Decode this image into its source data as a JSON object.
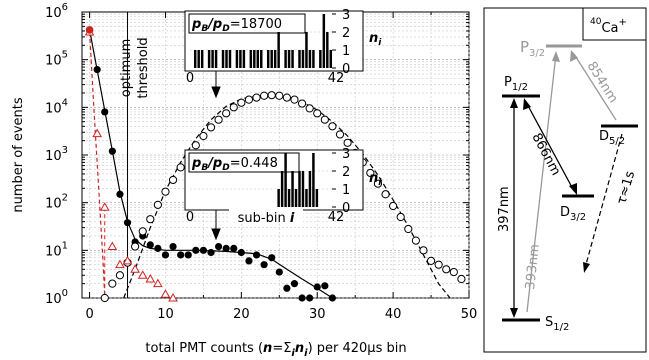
{
  "chart_data": [
    {
      "type": "scatter",
      "xlabel_parts": [
        "total PMT counts (",
        "n",
        "=Σ",
        "i",
        "n",
        "i",
        ") per 420μs bin"
      ],
      "ylabel": "number of events",
      "xlim": [
        -1,
        50
      ],
      "ylim_log10": [
        0,
        6
      ],
      "x_ticks": [
        "0",
        "10",
        "20",
        "30",
        "40",
        "50"
      ],
      "y_ticks": [
        {
          "base": "10",
          "exp": "0"
        },
        {
          "base": "10",
          "exp": "1"
        },
        {
          "base": "10",
          "exp": "2"
        },
        {
          "base": "10",
          "exp": "3"
        },
        {
          "base": "10",
          "exp": "4"
        },
        {
          "base": "10",
          "exp": "5"
        },
        {
          "base": "10",
          "exp": "6"
        }
      ],
      "y_scale": "log",
      "grid": true,
      "threshold_label": [
        "optimum",
        "threshold"
      ],
      "threshold_x": 5,
      "series": [
        {
          "marker": "filled-circle",
          "color": "#000000",
          "points": [
            [
              0,
              420000
            ],
            [
              1,
              62000
            ],
            [
              2,
              8000
            ],
            [
              3,
              1200
            ],
            [
              4,
              150
            ],
            [
              5,
              38
            ],
            [
              6,
              15
            ],
            [
              7,
              20
            ],
            [
              8,
              13
            ],
            [
              9,
              11
            ],
            [
              10,
              8
            ],
            [
              11,
              12
            ],
            [
              12,
              8
            ],
            [
              13,
              8
            ],
            [
              14,
              10
            ],
            [
              15,
              10
            ],
            [
              16,
              9
            ],
            [
              17,
              12
            ],
            [
              18,
              11
            ],
            [
              19,
              11
            ],
            [
              20,
              9
            ],
            [
              21,
              6
            ],
            [
              22,
              8
            ],
            [
              23,
              5
            ],
            [
              24,
              7
            ],
            [
              25,
              3.5
            ],
            [
              26,
              1.6
            ],
            [
              27,
              2
            ],
            [
              28,
              1
            ],
            [
              29,
              1
            ],
            [
              30,
              1.7
            ],
            [
              31,
              1.8
            ],
            [
              32,
              1
            ]
          ],
          "fit": [
            [
              0,
              420000
            ],
            [
              1,
              60000
            ],
            [
              2,
              8500
            ],
            [
              3,
              1200
            ],
            [
              4,
              170
            ],
            [
              5,
              40
            ],
            [
              6,
              17
            ],
            [
              7,
              12.5
            ],
            [
              8,
              11
            ],
            [
              10,
              10
            ],
            [
              14,
              10
            ],
            [
              18,
              9.5
            ],
            [
              22,
              8.5
            ],
            [
              24,
              6.5
            ],
            [
              26,
              4
            ],
            [
              28,
              2.5
            ],
            [
              30,
              1.6
            ],
            [
              32,
              1
            ]
          ]
        },
        {
          "marker": "open-circle",
          "color": "#000000",
          "points": [
            [
              2,
              1
            ],
            [
              3,
              2
            ],
            [
              4,
              3
            ],
            [
              5,
              5.5
            ],
            [
              6,
              12
            ],
            [
              7,
              25
            ],
            [
              8,
              45
            ],
            [
              9,
              90
            ],
            [
              10,
              170
            ],
            [
              11,
              300
            ],
            [
              12,
              550
            ],
            [
              13,
              950
            ],
            [
              14,
              1600
            ],
            [
              15,
              2500
            ],
            [
              16,
              3800
            ],
            [
              17,
              5500
            ],
            [
              18,
              7500
            ],
            [
              19,
              10000
            ],
            [
              20,
              12500
            ],
            [
              21,
              14500
            ],
            [
              22,
              16000
            ],
            [
              23,
              17500
            ],
            [
              24,
              18000
            ],
            [
              25,
              17500
            ],
            [
              26,
              16000
            ],
            [
              27,
              14500
            ],
            [
              28,
              12000
            ],
            [
              29,
              9500
            ],
            [
              30,
              7500
            ],
            [
              31,
              5500
            ],
            [
              32,
              4000
            ],
            [
              33,
              2700
            ],
            [
              34,
              1800
            ],
            [
              35,
              1100
            ],
            [
              36,
              700
            ],
            [
              37,
              420
            ],
            [
              38,
              250
            ],
            [
              39,
              150
            ],
            [
              40,
              85
            ],
            [
              41,
              50
            ],
            [
              42,
              28
            ],
            [
              43,
              16
            ],
            [
              44,
              10
            ],
            [
              45,
              6
            ],
            [
              46,
              5
            ],
            [
              47,
              4
            ],
            [
              48,
              3.5
            ],
            [
              49,
              2.5
            ]
          ],
          "fit": [
            [
              4.5,
              1
            ],
            [
              6,
              4
            ],
            [
              8,
              30
            ],
            [
              10,
              180
            ],
            [
              12,
              700
            ],
            [
              14,
              2200
            ],
            [
              16,
              5500
            ],
            [
              18,
              10500
            ],
            [
              20,
              15000
            ],
            [
              22,
              17500
            ],
            [
              24,
              18000
            ],
            [
              26,
              16500
            ],
            [
              28,
              13000
            ],
            [
              30,
              8800
            ],
            [
              32,
              5000
            ],
            [
              34,
              2500
            ],
            [
              36,
              1050
            ],
            [
              38,
              380
            ],
            [
              40,
              115
            ],
            [
              42,
              32
            ],
            [
              44,
              8
            ],
            [
              46,
              2
            ],
            [
              47.5,
              1
            ]
          ]
        },
        {
          "marker": "open-triangle",
          "color": "#cc2222",
          "points": [
            [
              0,
              380000
            ],
            [
              1,
              2800
            ],
            [
              2,
              80
            ],
            [
              3,
              12
            ],
            [
              4,
              5
            ],
            [
              5,
              6
            ],
            [
              6,
              4
            ],
            [
              7,
              3
            ],
            [
              8,
              2.5
            ],
            [
              9,
              2
            ],
            [
              10,
              1.2
            ],
            [
              11,
              1
            ]
          ],
          "fit": [
            [
              0,
              380000
            ],
            [
              0.6,
              8000
            ],
            [
              1.2,
              200
            ],
            [
              1.8,
              5
            ],
            [
              2,
              1
            ]
          ]
        }
      ]
    },
    {
      "type": "bar",
      "inset": "top",
      "ratio_label": [
        "p",
        "B",
        "/p",
        "D",
        "=18700"
      ],
      "ylabel": [
        "n",
        "i"
      ],
      "x_ticks": [
        "0",
        "42"
      ],
      "y_ticks": [
        "0",
        "1",
        "2",
        "3"
      ],
      "xlim": [
        0,
        42
      ],
      "ylim": [
        0,
        3
      ],
      "values": [
        0,
        1,
        1,
        1,
        0,
        1,
        1,
        1,
        0,
        1,
        1,
        1,
        0,
        1,
        1,
        1,
        0,
        1,
        1,
        1,
        1,
        0,
        1,
        1,
        1,
        2,
        0,
        1,
        1,
        1,
        0,
        1,
        1,
        2,
        1,
        1,
        0,
        1,
        3,
        2,
        1,
        0
      ]
    },
    {
      "type": "bar",
      "inset": "middle",
      "ratio_label": [
        "p",
        "B",
        "/p",
        "D",
        "=0.448"
      ],
      "ylabel": [
        "n",
        "i"
      ],
      "xlabel": [
        "sub-bin ",
        "i"
      ],
      "x_ticks": [
        "0",
        "42"
      ],
      "y_ticks": [
        "0",
        "1",
        "2",
        "3"
      ],
      "xlim": [
        0,
        42
      ],
      "ylim": [
        0,
        3
      ],
      "values": [
        0,
        0,
        0,
        0,
        0,
        0,
        0,
        0,
        0,
        0,
        0,
        0,
        0,
        0,
        0,
        0,
        0,
        0,
        0,
        0,
        0,
        0,
        0,
        0,
        0,
        1,
        2,
        3,
        1,
        2,
        1,
        2,
        2,
        1,
        2,
        3,
        1,
        0,
        0,
        0,
        0,
        0
      ]
    }
  ],
  "level_diagram": {
    "ion": {
      "sup": "40",
      "base": "Ca",
      "charge": "+"
    },
    "levels": [
      {
        "key": "S",
        "main": "S",
        "sub": "1/2"
      },
      {
        "key": "P12",
        "main": "P",
        "sub": "1/2"
      },
      {
        "key": "P32",
        "main": "P",
        "sub": "3/2"
      },
      {
        "key": "D32",
        "main": "D",
        "sub": "3/2"
      },
      {
        "key": "D52",
        "main": "D",
        "sub": "5/2"
      }
    ],
    "transitions": [
      {
        "label": "397nm",
        "color": "#000000"
      },
      {
        "label": "393nm",
        "color": "#999999"
      },
      {
        "label": "866nm",
        "color": "#000000"
      },
      {
        "label": "854nm",
        "color": "#999999"
      },
      {
        "label": "τ≈1s",
        "color": "#000000"
      }
    ]
  }
}
